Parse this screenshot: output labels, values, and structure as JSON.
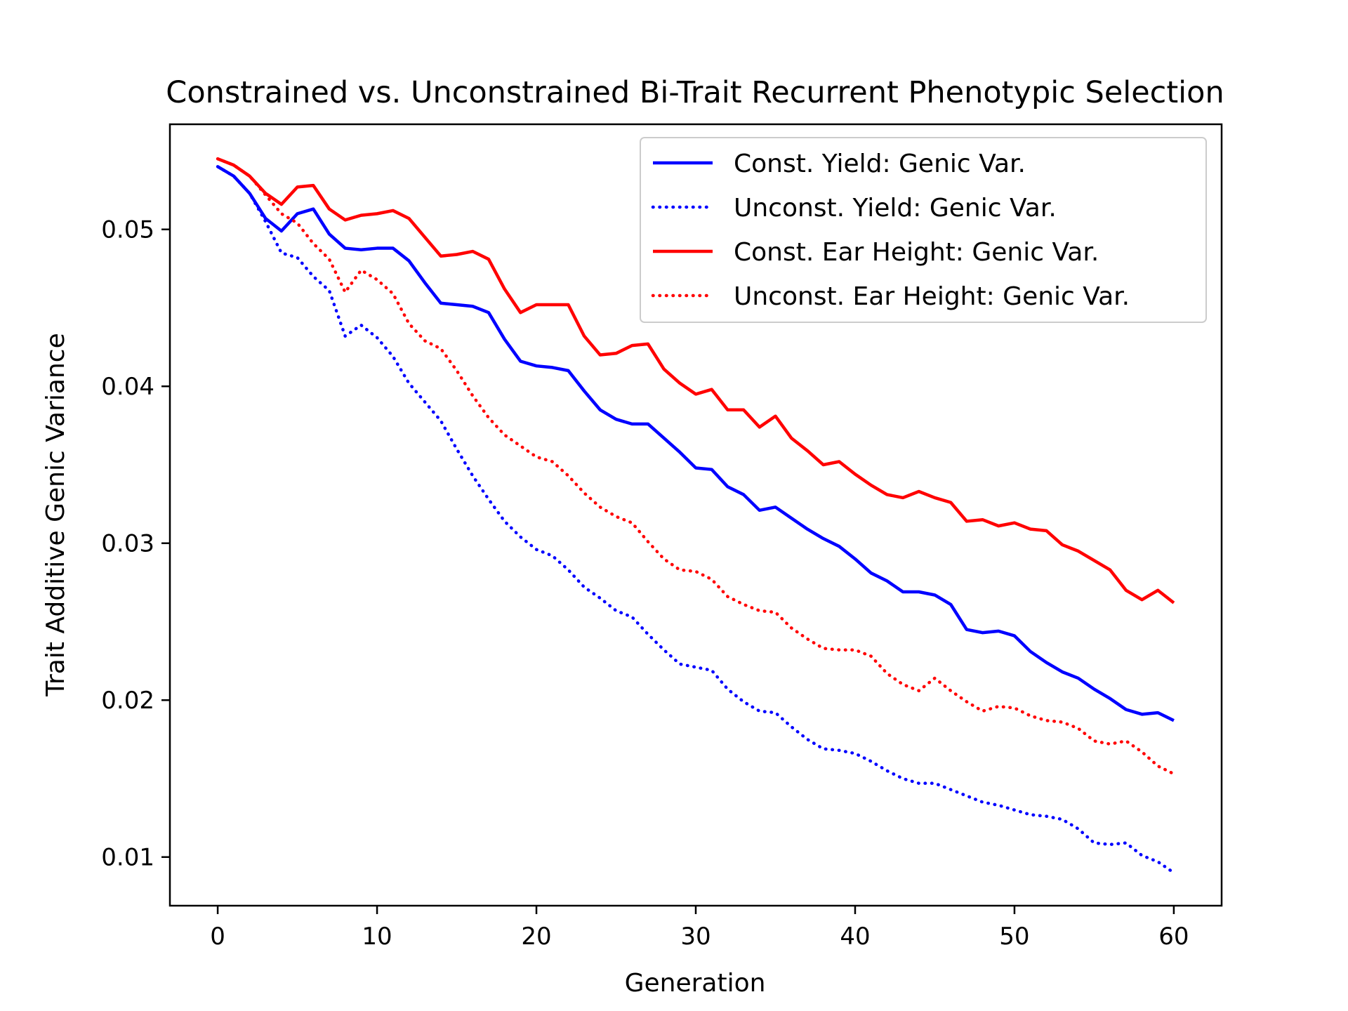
{
  "chart_data": {
    "type": "line",
    "title": "Constrained vs. Unconstrained Bi-Trait Recurrent Phenotypic Selection",
    "xlabel": "Generation",
    "ylabel": "Trait Additive Genic Variance",
    "xlim": [
      -3,
      63
    ],
    "ylim": [
      0.0069,
      0.0567
    ],
    "xticks": [
      0,
      10,
      20,
      30,
      40,
      50,
      60
    ],
    "xtick_labels": [
      "0",
      "10",
      "20",
      "30",
      "40",
      "50",
      "60"
    ],
    "yticks": [
      0.01,
      0.02,
      0.03,
      0.04,
      0.05
    ],
    "ytick_labels": [
      "0.01",
      "0.02",
      "0.03",
      "0.04",
      "0.05"
    ],
    "grid": false,
    "legend_position": "top-right",
    "x": [
      0,
      1,
      2,
      3,
      4,
      5,
      6,
      7,
      8,
      9,
      10,
      11,
      12,
      13,
      14,
      15,
      16,
      17,
      18,
      19,
      20,
      21,
      22,
      23,
      24,
      25,
      26,
      27,
      28,
      29,
      30,
      31,
      32,
      33,
      34,
      35,
      36,
      37,
      38,
      39,
      40,
      41,
      42,
      43,
      44,
      45,
      46,
      47,
      48,
      49,
      50,
      51,
      52,
      53,
      54,
      55,
      56,
      57,
      58,
      59,
      60
    ],
    "series": [
      {
        "name": "Const. Yield: Genic Var.",
        "color": "#0000ff",
        "style": "solid",
        "values": [
          0.054,
          0.0534,
          0.0523,
          0.0507,
          0.0499,
          0.051,
          0.0513,
          0.0497,
          0.0488,
          0.0487,
          0.0488,
          0.0488,
          0.048,
          0.0466,
          0.0453,
          0.0452,
          0.0451,
          0.0447,
          0.043,
          0.0416,
          0.0413,
          0.0412,
          0.041,
          0.0397,
          0.0385,
          0.0379,
          0.0376,
          0.0376,
          0.0367,
          0.0358,
          0.0348,
          0.0347,
          0.0336,
          0.0331,
          0.0321,
          0.0323,
          0.0316,
          0.0309,
          0.0303,
          0.0298,
          0.029,
          0.0281,
          0.0276,
          0.0269,
          0.0269,
          0.0267,
          0.0261,
          0.0245,
          0.0243,
          0.0244,
          0.0241,
          0.0231,
          0.0224,
          0.0218,
          0.0214,
          0.0207,
          0.0201,
          0.0194,
          0.0191,
          0.0192,
          0.0187
        ]
      },
      {
        "name": "Unconst. Yield: Genic Var.",
        "color": "#0000ff",
        "style": "dotted",
        "values": [
          0.054,
          0.0534,
          0.0523,
          0.0505,
          0.0485,
          0.0482,
          0.047,
          0.0461,
          0.0432,
          0.0439,
          0.0431,
          0.0419,
          0.0402,
          0.039,
          0.0378,
          0.036,
          0.0343,
          0.0328,
          0.0314,
          0.0304,
          0.0296,
          0.0292,
          0.0283,
          0.0272,
          0.0265,
          0.0257,
          0.0253,
          0.0242,
          0.0232,
          0.0223,
          0.0221,
          0.0219,
          0.0207,
          0.0199,
          0.0193,
          0.0192,
          0.0183,
          0.0175,
          0.0169,
          0.0168,
          0.0166,
          0.0161,
          0.0155,
          0.015,
          0.0147,
          0.0147,
          0.0143,
          0.0139,
          0.0135,
          0.0133,
          0.013,
          0.0127,
          0.0126,
          0.0124,
          0.0118,
          0.0109,
          0.0108,
          0.0109,
          0.0101,
          0.0097,
          0.009
        ]
      },
      {
        "name": "Const. Ear Height: Genic Var.",
        "color": "#ff0000",
        "style": "solid",
        "values": [
          0.0545,
          0.0541,
          0.0534,
          0.0523,
          0.0516,
          0.0527,
          0.0528,
          0.0513,
          0.0506,
          0.0509,
          0.051,
          0.0512,
          0.0507,
          0.0495,
          0.0483,
          0.0484,
          0.0486,
          0.0481,
          0.0462,
          0.0447,
          0.0452,
          0.0452,
          0.0452,
          0.0432,
          0.042,
          0.0421,
          0.0426,
          0.0427,
          0.0411,
          0.0402,
          0.0395,
          0.0398,
          0.0385,
          0.0385,
          0.0374,
          0.0381,
          0.0367,
          0.0359,
          0.035,
          0.0352,
          0.0344,
          0.0337,
          0.0331,
          0.0329,
          0.0333,
          0.0329,
          0.0326,
          0.0314,
          0.0315,
          0.0311,
          0.0313,
          0.0309,
          0.0308,
          0.0299,
          0.0295,
          0.0289,
          0.0283,
          0.027,
          0.0264,
          0.027,
          0.0262
        ]
      },
      {
        "name": "Unconst. Ear Height: Genic Var.",
        "color": "#ff0000",
        "style": "dotted",
        "values": [
          0.0545,
          0.0541,
          0.0534,
          0.0522,
          0.051,
          0.0504,
          0.0491,
          0.0481,
          0.046,
          0.0474,
          0.0468,
          0.0459,
          0.044,
          0.0429,
          0.0424,
          0.041,
          0.0394,
          0.038,
          0.0369,
          0.0362,
          0.0355,
          0.0352,
          0.0343,
          0.0332,
          0.0323,
          0.0317,
          0.0313,
          0.0301,
          0.029,
          0.0283,
          0.0282,
          0.0277,
          0.0266,
          0.0261,
          0.0257,
          0.0256,
          0.0246,
          0.0239,
          0.0233,
          0.0232,
          0.0232,
          0.0228,
          0.0217,
          0.021,
          0.0206,
          0.0214,
          0.0206,
          0.0199,
          0.0193,
          0.0196,
          0.0195,
          0.019,
          0.0187,
          0.0186,
          0.0182,
          0.0174,
          0.0172,
          0.0174,
          0.0167,
          0.0158,
          0.0153
        ]
      }
    ]
  }
}
